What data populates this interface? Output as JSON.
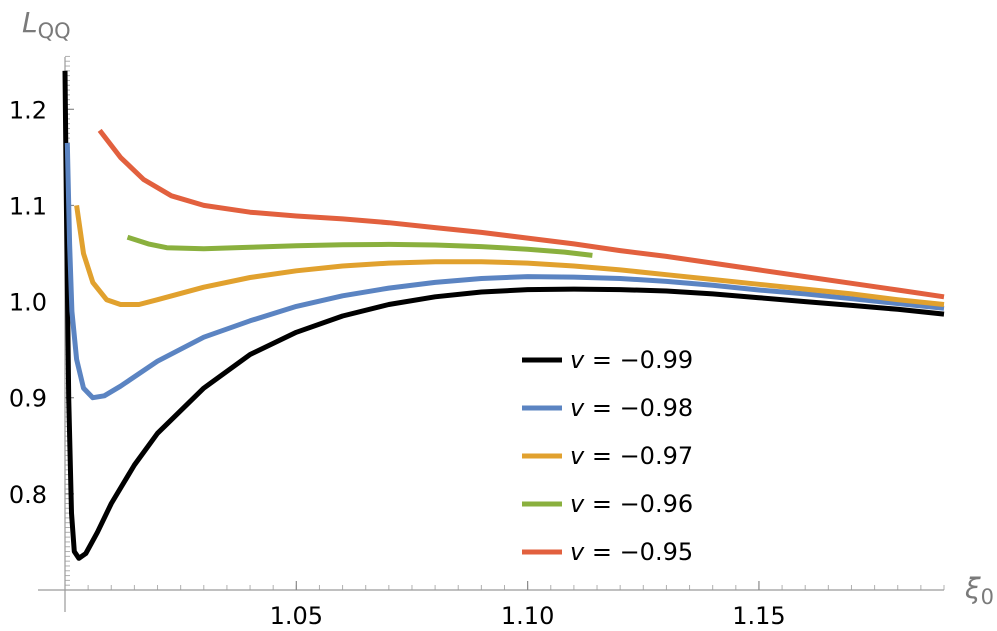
{
  "chart_data": {
    "type": "line",
    "title": "",
    "xlabel": {
      "main": "ξ",
      "sub": "0"
    },
    "ylabel": {
      "main": "L",
      "sub": "QQ"
    },
    "xlim": [
      1.0,
      1.19
    ],
    "ylim": [
      0.7,
      1.27
    ],
    "x_ticks": [
      {
        "value": 1.05,
        "label": "1.05"
      },
      {
        "value": 1.1,
        "label": "1.10"
      },
      {
        "value": 1.15,
        "label": "1.15"
      }
    ],
    "y_ticks": [
      {
        "value": 0.8,
        "label": "0.8"
      },
      {
        "value": 0.9,
        "label": "0.9"
      },
      {
        "value": 1.0,
        "label": "1.0"
      },
      {
        "value": 1.1,
        "label": "1.1"
      },
      {
        "value": 1.2,
        "label": "1.2"
      }
    ],
    "legend_position": "lower-center",
    "series": [
      {
        "name": "v = −0.99",
        "color": "#000000",
        "points": [
          [
            1.0,
            1.24
          ],
          [
            1.0003,
            1.1
          ],
          [
            1.0008,
            0.9
          ],
          [
            1.0014,
            0.78
          ],
          [
            1.002,
            0.74
          ],
          [
            1.003,
            0.733
          ],
          [
            1.0045,
            0.738
          ],
          [
            1.007,
            0.76
          ],
          [
            1.01,
            0.79
          ],
          [
            1.015,
            0.83
          ],
          [
            1.02,
            0.863
          ],
          [
            1.03,
            0.91
          ],
          [
            1.04,
            0.945
          ],
          [
            1.05,
            0.968
          ],
          [
            1.06,
            0.985
          ],
          [
            1.07,
            0.997
          ],
          [
            1.08,
            1.005
          ],
          [
            1.09,
            1.01
          ],
          [
            1.1,
            1.0125
          ],
          [
            1.11,
            1.013
          ],
          [
            1.12,
            1.0125
          ],
          [
            1.13,
            1.011
          ],
          [
            1.14,
            1.008
          ],
          [
            1.15,
            1.004
          ],
          [
            1.16,
            1.0
          ],
          [
            1.17,
            0.996
          ],
          [
            1.18,
            0.992
          ],
          [
            1.19,
            0.987
          ]
        ]
      },
      {
        "name": "v = −0.98",
        "color": "#5b84c2",
        "points": [
          [
            1.0005,
            1.165
          ],
          [
            1.001,
            1.06
          ],
          [
            1.0015,
            0.99
          ],
          [
            1.0025,
            0.94
          ],
          [
            1.004,
            0.91
          ],
          [
            1.006,
            0.9
          ],
          [
            1.0085,
            0.902
          ],
          [
            1.012,
            0.912
          ],
          [
            1.02,
            0.938
          ],
          [
            1.03,
            0.963
          ],
          [
            1.04,
            0.98
          ],
          [
            1.05,
            0.995
          ],
          [
            1.06,
            1.006
          ],
          [
            1.07,
            1.014
          ],
          [
            1.08,
            1.02
          ],
          [
            1.09,
            1.024
          ],
          [
            1.1,
            1.026
          ],
          [
            1.11,
            1.0255
          ],
          [
            1.12,
            1.024
          ],
          [
            1.13,
            1.021
          ],
          [
            1.14,
            1.017
          ],
          [
            1.15,
            1.012
          ],
          [
            1.16,
            1.008
          ],
          [
            1.17,
            1.003
          ],
          [
            1.18,
            0.998
          ],
          [
            1.19,
            0.993
          ]
        ]
      },
      {
        "name": "v = −0.97",
        "color": "#e1a12e",
        "points": [
          [
            1.0025,
            1.1
          ],
          [
            1.004,
            1.05
          ],
          [
            1.006,
            1.02
          ],
          [
            1.009,
            1.002
          ],
          [
            1.012,
            0.997
          ],
          [
            1.016,
            0.997
          ],
          [
            1.02,
            1.002
          ],
          [
            1.03,
            1.015
          ],
          [
            1.04,
            1.025
          ],
          [
            1.05,
            1.032
          ],
          [
            1.06,
            1.037
          ],
          [
            1.07,
            1.04
          ],
          [
            1.08,
            1.0415
          ],
          [
            1.09,
            1.0415
          ],
          [
            1.1,
            1.04
          ],
          [
            1.11,
            1.037
          ],
          [
            1.12,
            1.033
          ],
          [
            1.13,
            1.028
          ],
          [
            1.14,
            1.023
          ],
          [
            1.15,
            1.018
          ],
          [
            1.16,
            1.013
          ],
          [
            1.17,
            1.008
          ],
          [
            1.18,
            1.002
          ],
          [
            1.19,
            0.997
          ]
        ]
      },
      {
        "name": "v = −0.96",
        "color": "#8ab03e",
        "points": [
          [
            1.0135,
            1.067
          ],
          [
            1.018,
            1.06
          ],
          [
            1.022,
            1.056
          ],
          [
            1.03,
            1.055
          ],
          [
            1.04,
            1.0565
          ],
          [
            1.05,
            1.058
          ],
          [
            1.06,
            1.0592
          ],
          [
            1.07,
            1.0595
          ],
          [
            1.08,
            1.0588
          ],
          [
            1.09,
            1.0572
          ],
          [
            1.1,
            1.0545
          ],
          [
            1.108,
            1.0515
          ],
          [
            1.114,
            1.048
          ]
        ]
      },
      {
        "name": "v = −0.95",
        "color": "#e2603e",
        "points": [
          [
            1.0075,
            1.178
          ],
          [
            1.012,
            1.15
          ],
          [
            1.017,
            1.127
          ],
          [
            1.023,
            1.11
          ],
          [
            1.03,
            1.1
          ],
          [
            1.04,
            1.093
          ],
          [
            1.05,
            1.089
          ],
          [
            1.06,
            1.086
          ],
          [
            1.07,
            1.082
          ],
          [
            1.08,
            1.077
          ],
          [
            1.09,
            1.072
          ],
          [
            1.1,
            1.066
          ],
          [
            1.11,
            1.06
          ],
          [
            1.12,
            1.053
          ],
          [
            1.13,
            1.047
          ],
          [
            1.14,
            1.04
          ],
          [
            1.15,
            1.033
          ],
          [
            1.16,
            1.026
          ],
          [
            1.17,
            1.019
          ],
          [
            1.18,
            1.012
          ],
          [
            1.19,
            1.005
          ]
        ]
      }
    ]
  }
}
